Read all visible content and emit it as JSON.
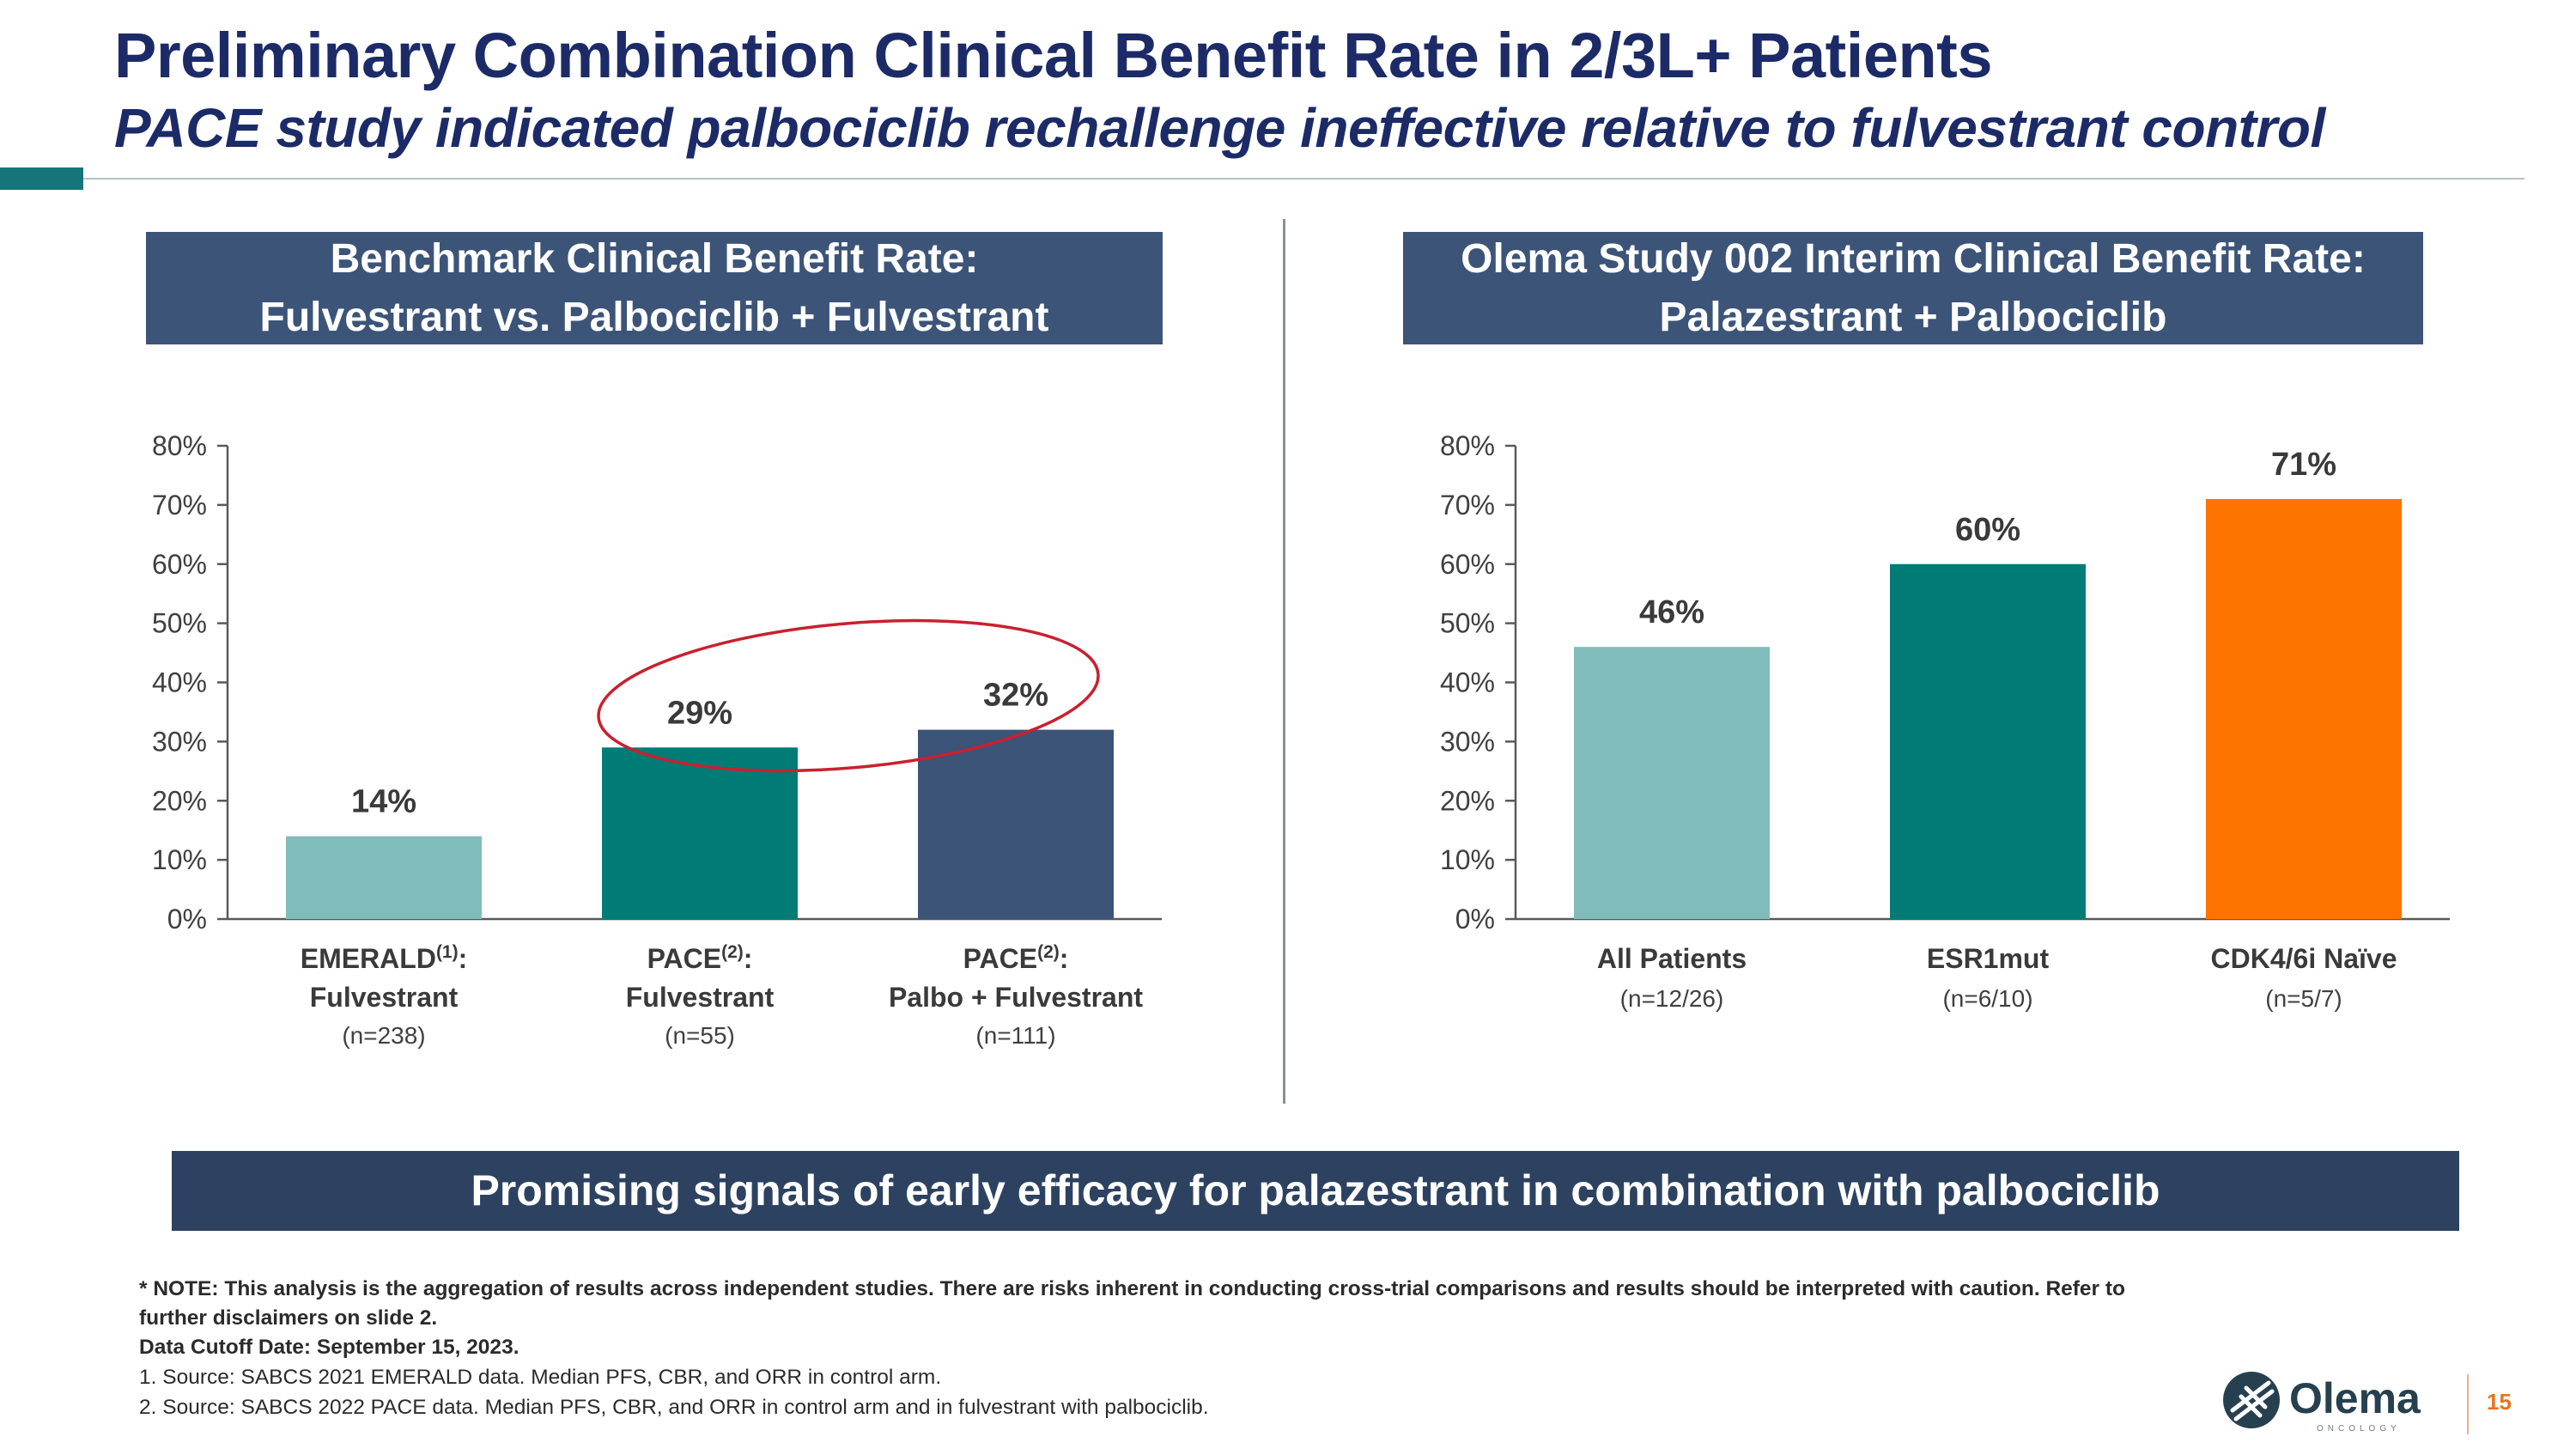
{
  "slide": {
    "title": "Preliminary Combination Clinical Benefit Rate in 2/3L+ Patients",
    "subtitle": "PACE study indicated palbociclib rechallenge ineffective relative to fulvestrant control",
    "banner": "Promising signals of early efficacy for palazestrant in combination with palbociclib",
    "page_number": "15",
    "logo_text": "Olema",
    "logo_subtext": "ONCOLOGY",
    "footnotes": {
      "note_line1": "* NOTE: This analysis is the aggregation of results across independent studies.  There are risks inherent in conducting cross-trial comparisons and results should be interpreted with caution. Refer to",
      "note_line2": "further disclaimers on slide 2.",
      "cutoff": "Data Cutoff Date: September 15, 2023.",
      "source1": "1. Source: SABCS 2021 EMERALD data.  Median PFS, CBR, and ORR in control arm.",
      "source2": "2. Source: SABCS 2022 PACE data.  Median PFS, CBR, and ORR in control arm and in fulvestrant with palbociclib."
    },
    "colors": {
      "title": "#1c2b68",
      "header_box": "#3c5478",
      "banner": "#2c4260",
      "light_teal": "#80bdba",
      "teal": "#007b76",
      "navy": "#3c5478",
      "orange": "#ff7400",
      "highlight_ellipse": "#c9202f"
    }
  },
  "chart_data": [
    {
      "type": "bar",
      "header_line1": "Benchmark Clinical Benefit Rate:",
      "header_line2": "Fulvestrant vs. Palbociclib + Fulvestrant",
      "ylim": [
        0,
        80
      ],
      "yticks": [
        "0%",
        "10%",
        "20%",
        "30%",
        "40%",
        "50%",
        "60%",
        "70%",
        "80%"
      ],
      "values": [
        14,
        29,
        32
      ],
      "data_labels": [
        "14%",
        "29%",
        "32%"
      ],
      "bar_colors": [
        "#80bdba",
        "#007b76",
        "#3c5478"
      ],
      "categories": [
        {
          "name": "EMERALD",
          "sup": "(1)",
          "suffix": ":",
          "line2": "Fulvestrant",
          "n": "(n=238)"
        },
        {
          "name": "PACE",
          "sup": "(2)",
          "suffix": ":",
          "line2": "Fulvestrant",
          "n": "(n=55)"
        },
        {
          "name": "PACE",
          "sup": "(2)",
          "suffix": ":",
          "line2": "Palbo + Fulvestrant",
          "n": "(n=111)"
        }
      ],
      "annotation": "ellipse highlighting PACE bars 29% and 32%"
    },
    {
      "type": "bar",
      "header_line1": "Olema Study 002 Interim Clinical Benefit Rate:",
      "header_line2": "Palazestrant + Palbociclib",
      "ylim": [
        0,
        80
      ],
      "yticks": [
        "0%",
        "10%",
        "20%",
        "30%",
        "40%",
        "50%",
        "60%",
        "70%",
        "80%"
      ],
      "values": [
        46,
        60,
        71
      ],
      "data_labels": [
        "46%",
        "60%",
        "71%"
      ],
      "bar_colors": [
        "#80bdba",
        "#007b76",
        "#ff7400"
      ],
      "categories": [
        {
          "name": "All Patients",
          "sup": "",
          "suffix": "",
          "line2": "",
          "n": "(n=12/26)"
        },
        {
          "name": "ESR1mut",
          "sup": "",
          "suffix": "",
          "line2": "",
          "n": "(n=6/10)"
        },
        {
          "name": "CDK4/6i Naïve",
          "sup": "",
          "suffix": "",
          "line2": "",
          "n": "(n=5/7)"
        }
      ]
    }
  ]
}
